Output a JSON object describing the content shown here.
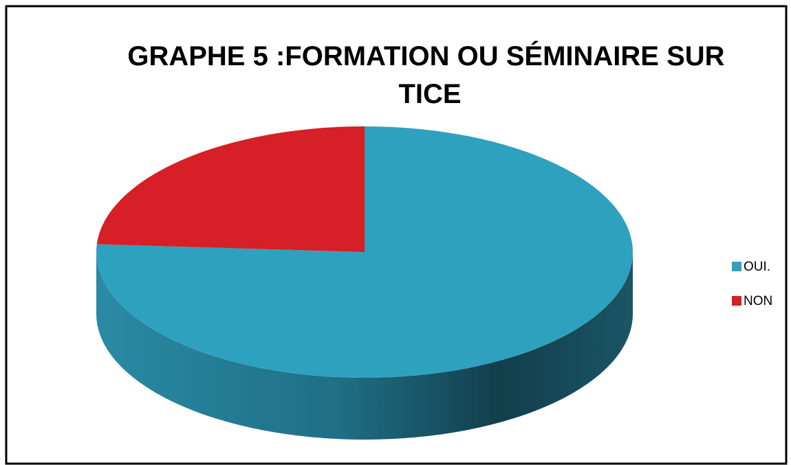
{
  "chart_data": {
    "type": "pie",
    "title": "GRAPHE 5 :FORMATION OU SÉMINAIRE SUR TICE",
    "categories": [
      "OUI.",
      "NON"
    ],
    "values": [
      76,
      24
    ],
    "colors": [
      "#2ea1bf",
      "#d61f26"
    ],
    "legend": "right",
    "three_d": true
  }
}
